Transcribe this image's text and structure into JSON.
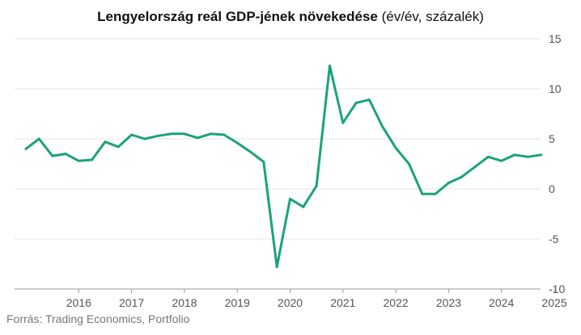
{
  "title_bold": "Lengyelország reál GDP-jének növekedése",
  "title_rest": " (év/év, százalék)",
  "source": "Forrás: Trading Economics, Portfolio",
  "colors": {
    "line": "#1aa37a",
    "grid": "#e3e3e3",
    "axis": "#9a9a9a"
  },
  "chart_data": {
    "type": "line",
    "title": "Lengyelország reál GDP-jének növekedése (év/év, százalék)",
    "xlabel": "",
    "ylabel": "",
    "ylim": [
      -10,
      15
    ],
    "yticks": [
      15,
      10,
      5,
      0,
      -5,
      -10
    ],
    "ytick_labels": [
      "15",
      "10",
      "5",
      "0",
      "-5",
      "-10"
    ],
    "xticks": [
      "2016",
      "2017",
      "2018",
      "2019",
      "2020",
      "2021",
      "2022",
      "2023",
      "2024",
      "2025"
    ],
    "grid": "horizontal",
    "y_axis_position": "right",
    "series": [
      {
        "name": "",
        "x": [
          "2015 Q3",
          "2015 Q4",
          "2016 Q1",
          "2016 Q2",
          "2016 Q3",
          "2016 Q4",
          "2017 Q1",
          "2017 Q2",
          "2017 Q3",
          "2017 Q4",
          "2018 Q1",
          "2018 Q2",
          "2018 Q3",
          "2018 Q4",
          "2019 Q1",
          "2019 Q2",
          "2019 Q3",
          "2019 Q4",
          "2020 Q1",
          "2020 Q2",
          "2020 Q3",
          "2020 Q4",
          "2021 Q1",
          "2021 Q2",
          "2021 Q3",
          "2021 Q4",
          "2022 Q1",
          "2022 Q2",
          "2022 Q3",
          "2022 Q4",
          "2023 Q1",
          "2023 Q2",
          "2023 Q3",
          "2023 Q4",
          "2024 Q1",
          "2024 Q2",
          "2024 Q3",
          "2024 Q4",
          "2025 Q1",
          "2025 Q2"
        ],
        "values": [
          4.0,
          5.0,
          3.3,
          3.5,
          2.8,
          2.9,
          4.7,
          4.2,
          5.4,
          5.0,
          5.3,
          5.5,
          5.5,
          5.1,
          5.5,
          5.4,
          4.6,
          3.7,
          2.7,
          -7.8,
          -1.0,
          -1.8,
          0.3,
          12.3,
          6.6,
          8.6,
          8.9,
          6.2,
          4.1,
          2.5,
          -0.5,
          -0.5,
          0.6,
          1.2,
          2.2,
          3.2,
          2.8,
          3.4,
          3.2,
          3.4
        ]
      }
    ]
  }
}
